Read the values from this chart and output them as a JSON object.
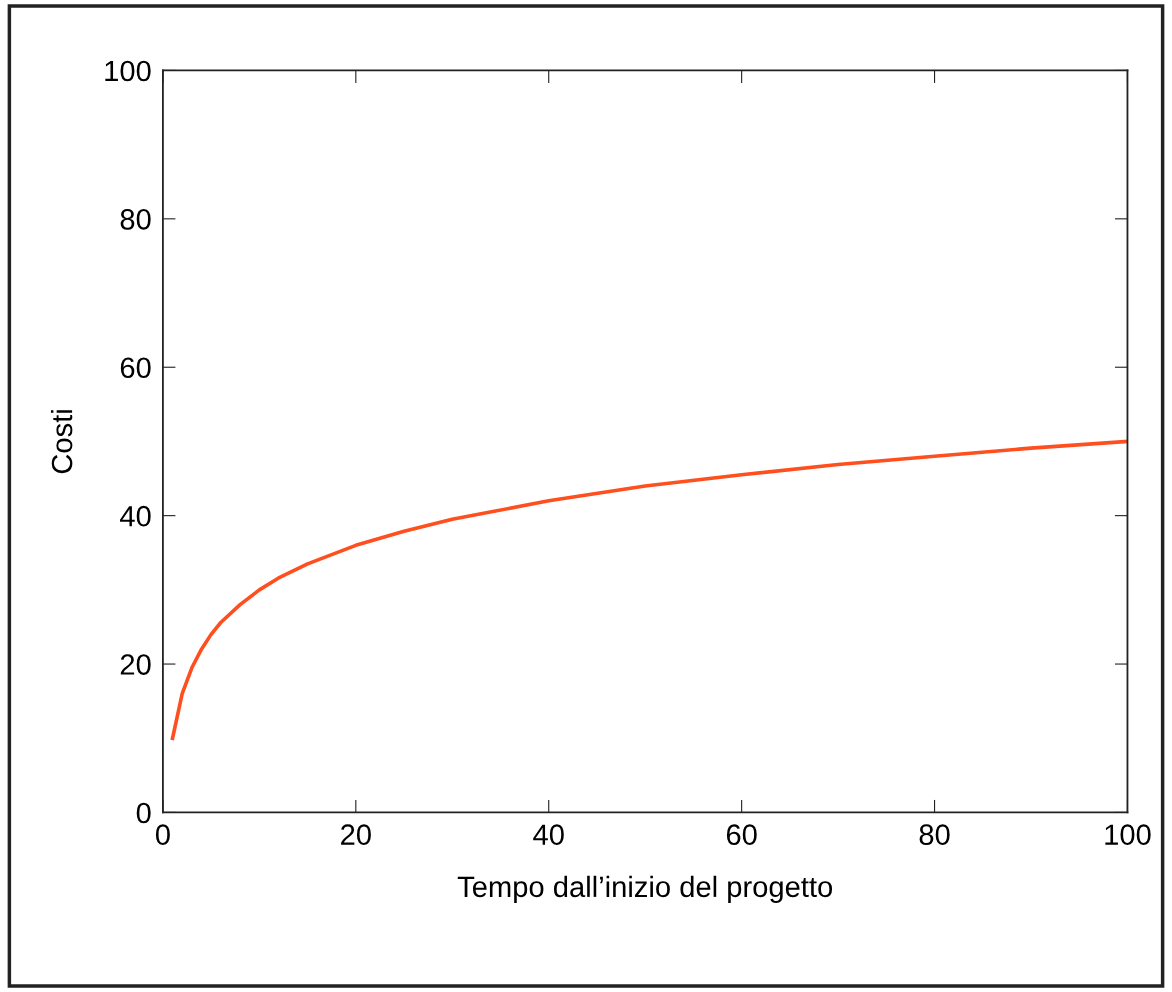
{
  "chart_data": {
    "type": "line",
    "xlabel": "Tempo dall’inizio del progetto",
    "ylabel": "Costi",
    "x": [
      1,
      2,
      3,
      4,
      5,
      6,
      8,
      10,
      12,
      15,
      20,
      25,
      30,
      40,
      50,
      60,
      70,
      80,
      90,
      100
    ],
    "series": [
      {
        "color": "#ff4f1f",
        "values": [
          10.0,
          16.0,
          19.5,
          22.0,
          24.0,
          25.6,
          28.0,
          30.0,
          31.6,
          33.5,
          36.0,
          37.9,
          39.5,
          42.0,
          44.0,
          45.5,
          46.9,
          48.0,
          49.1,
          50.0
        ]
      }
    ],
    "xlim": [
      0,
      100
    ],
    "xticks": [
      0,
      20,
      40,
      60,
      80,
      100
    ],
    "ylim": [
      0,
      100
    ],
    "yticks": [
      0,
      20,
      40,
      60,
      80,
      100
    ],
    "grid": false
  }
}
